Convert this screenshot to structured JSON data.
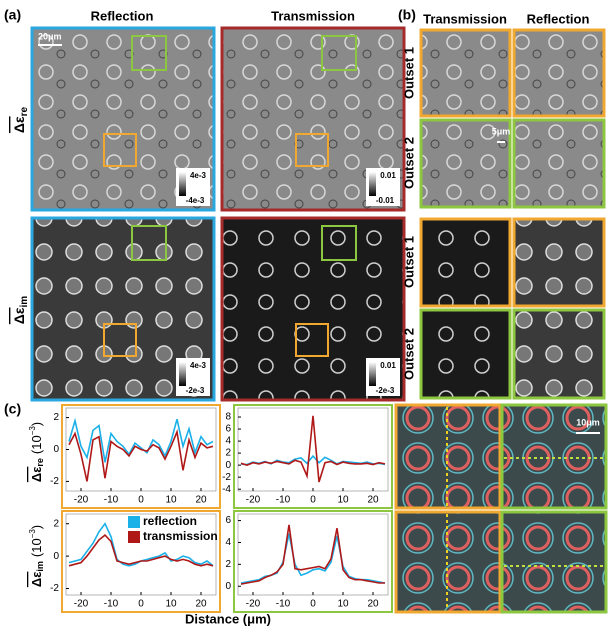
{
  "panel_a": {
    "label": "(a)",
    "columns": [
      "Reflection",
      "Transmission"
    ],
    "rows": [
      {
        "symbol": "Δε",
        "sub": "re"
      },
      {
        "symbol": "Δε",
        "sub": "im"
      }
    ],
    "scale_bar": "20μm",
    "colorbars": [
      [
        "4e-3",
        "-4e-3"
      ],
      [
        "0.01",
        "-0.01"
      ],
      [
        "4e-3",
        "-2e-3"
      ],
      [
        "0.01",
        "-2e-3"
      ]
    ]
  },
  "panel_b": {
    "label": "(b)",
    "columns": [
      "Transmission",
      "Reflection"
    ],
    "rows": [
      "Outset 1",
      "Outset 2",
      "Outset 1",
      "Outset 2"
    ],
    "scale_bar": "5μm"
  },
  "panel_c": {
    "label": "(c)",
    "scale_bar": "10μm",
    "x_label": "Distance (μm)"
  },
  "chart_data": [
    {
      "type": "line",
      "frame_color": "#f0a830",
      "y_label": {
        "symbol": "Δε",
        "sub": "re",
        "unit": "(10",
        "exp": "−3",
        "close": ")"
      },
      "x": [
        -24,
        -22,
        -20,
        -18,
        -16,
        -14,
        -12,
        -10,
        -8,
        -6,
        -4,
        -2,
        0,
        2,
        4,
        6,
        8,
        10,
        12,
        14,
        16,
        18,
        20,
        22,
        24
      ],
      "xlim": [
        -25,
        25
      ],
      "xticks": [
        -20,
        -10,
        0,
        10,
        20
      ],
      "ylim": [
        -2.6,
        2.6
      ],
      "yticks": [
        -2,
        0,
        2
      ],
      "series": [
        {
          "name": "reflection",
          "color": "#1ab0e8",
          "values": [
            0.5,
            1.8,
            0.2,
            -0.5,
            1.2,
            1.5,
            -0.8,
            1.0,
            0.5,
            0.2,
            -0.3,
            0.4,
            0.1,
            -0.2,
            0.6,
            0.3,
            -0.4,
            0.5,
            1.9,
            0.2,
            1.3,
            -0.2,
            0.8,
            0.3,
            0.5
          ]
        },
        {
          "name": "transmission",
          "color": "#b01818",
          "values": [
            0.3,
            1.0,
            -0.3,
            -2.0,
            0.6,
            0.8,
            -1.8,
            0.5,
            0.2,
            0.0,
            -0.4,
            0.2,
            0.0,
            -0.1,
            0.3,
            0.1,
            -0.6,
            0.2,
            1.1,
            -1.3,
            0.6,
            -0.5,
            0.4,
            0.1,
            0.2
          ]
        }
      ]
    },
    {
      "type": "line",
      "frame_color": "#8dc63f",
      "x": [
        -24,
        -22,
        -20,
        -18,
        -16,
        -14,
        -12,
        -10,
        -8,
        -6,
        -4,
        -2,
        0,
        2,
        4,
        6,
        8,
        10,
        12,
        14,
        16,
        18,
        20,
        22,
        24
      ],
      "xlim": [
        -25,
        25
      ],
      "xticks": [
        -20,
        -10,
        0,
        10,
        20
      ],
      "ylim": [
        -4.3,
        9.5
      ],
      "yticks": [
        -4,
        -2,
        0,
        2,
        4,
        6,
        8
      ],
      "series": [
        {
          "name": "reflection",
          "color": "#1ab0e8",
          "values": [
            0.2,
            0.1,
            0.5,
            0.3,
            0.6,
            0.2,
            0.8,
            0.5,
            0.4,
            1.0,
            1.2,
            0.3,
            1.5,
            0.4,
            1.3,
            0.8,
            0.2,
            0.6,
            0.5,
            0.4,
            0.3,
            0.5,
            0.2,
            0.3,
            0.1
          ]
        },
        {
          "name": "transmission",
          "color": "#b01818",
          "values": [
            0.3,
            0,
            0.4,
            0.2,
            0.5,
            0.3,
            0.6,
            0.4,
            0.2,
            0.8,
            0.5,
            -1.8,
            8.2,
            -2.8,
            0.4,
            0.6,
            0.1,
            0.5,
            0.3,
            0.2,
            0.2,
            0.3,
            0.1,
            0.4,
            0.2
          ]
        }
      ]
    },
    {
      "type": "line",
      "frame_color": "#f0a830",
      "legend": "upper right",
      "y_label": {
        "symbol": "Δε",
        "sub": "im",
        "unit": "(10",
        "exp": "−3",
        "close": ")"
      },
      "x": [
        -24,
        -22,
        -20,
        -18,
        -16,
        -14,
        -12,
        -10,
        -8,
        -6,
        -4,
        -2,
        0,
        2,
        4,
        6,
        8,
        10,
        12,
        14,
        16,
        18,
        20,
        22,
        24
      ],
      "xlim": [
        -25,
        25
      ],
      "xticks": [
        -20,
        -10,
        0,
        10,
        20
      ],
      "ylim": [
        -2.4,
        2.6
      ],
      "yticks": [
        -2,
        0,
        2
      ],
      "series": [
        {
          "name": "reflection",
          "color": "#1ab0e8",
          "values": [
            -0.4,
            -0.3,
            -0.2,
            0.3,
            0.8,
            1.5,
            2.0,
            1.2,
            -0.2,
            -0.5,
            -0.6,
            -0.5,
            -0.3,
            -0.2,
            -0.1,
            0,
            0.2,
            -0.3,
            -0.2,
            0,
            -0.1,
            -0.4,
            -0.5,
            -0.3,
            -0.6
          ]
        },
        {
          "name": "transmission",
          "color": "#b01818",
          "values": [
            -0.6,
            -0.5,
            -0.4,
            0,
            0.5,
            1.0,
            1.3,
            0.9,
            -0.3,
            -0.4,
            -0.5,
            -0.4,
            -0.3,
            -0.3,
            -0.2,
            -0.1,
            0,
            -0.2,
            -0.3,
            -0.2,
            -0.3,
            -0.5,
            -0.6,
            -0.5,
            -0.6
          ]
        }
      ]
    },
    {
      "type": "line",
      "frame_color": "#8dc63f",
      "x": [
        -24,
        -22,
        -20,
        -18,
        -16,
        -14,
        -12,
        -10,
        -8,
        -6,
        -4,
        -2,
        0,
        2,
        4,
        6,
        8,
        10,
        12,
        14,
        16,
        18,
        20,
        22,
        24
      ],
      "xlim": [
        -25,
        25
      ],
      "xticks": [
        -20,
        -10,
        0,
        10,
        20
      ],
      "ylim": [
        -0.8,
        6.6
      ],
      "yticks": [
        0,
        2,
        4,
        6
      ],
      "series": [
        {
          "name": "reflection",
          "color": "#1ab0e8",
          "values": [
            0.3,
            0.4,
            0.5,
            0.6,
            0.9,
            1.0,
            1.2,
            2.2,
            4.8,
            2.0,
            1.0,
            1.2,
            1.5,
            1.6,
            1.4,
            2.2,
            4.6,
            1.8,
            0.9,
            0.7,
            0.6,
            0.6,
            0.5,
            0.4,
            0.3
          ]
        },
        {
          "name": "transmission",
          "color": "#b01818",
          "values": [
            0.2,
            0.3,
            0.4,
            0.5,
            0.8,
            1.0,
            1.3,
            2.0,
            5.6,
            1.6,
            1.5,
            1.6,
            1.7,
            1.8,
            1.6,
            2.5,
            5.3,
            1.5,
            0.8,
            0.6,
            0.6,
            0.5,
            0.4,
            0.3,
            0.3
          ]
        }
      ]
    }
  ]
}
